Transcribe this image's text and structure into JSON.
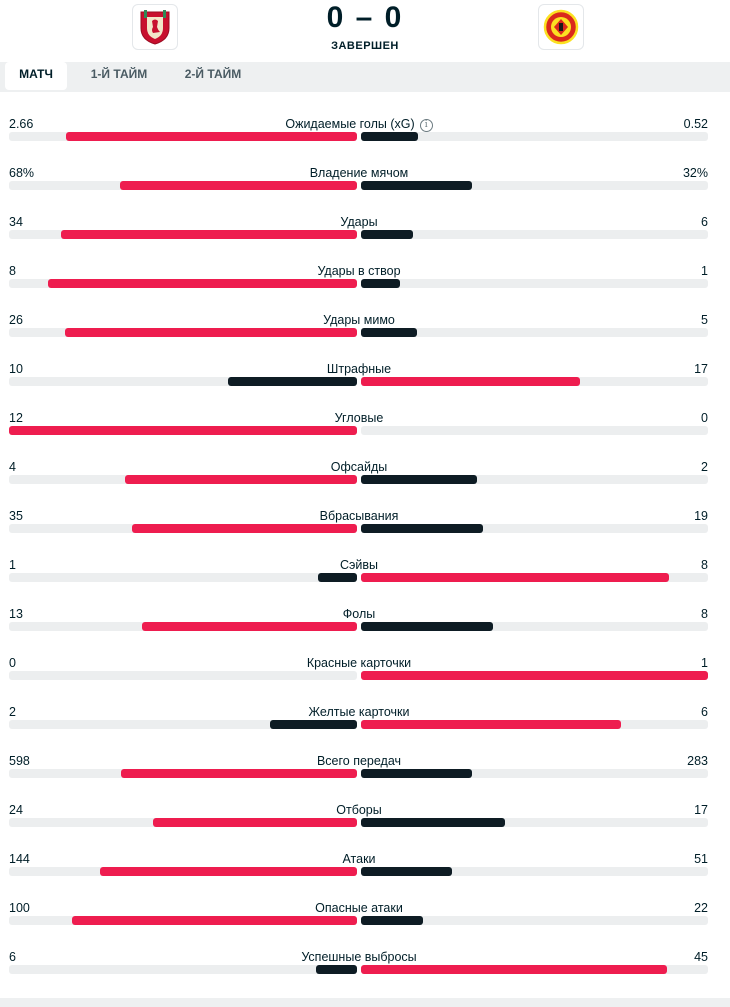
{
  "match": {
    "score": "0 – 0",
    "status": "ЗАВЕРШЕН",
    "home_logo": "liverpool-crest",
    "away_logo": "manchester-united-crest"
  },
  "tabs": [
    {
      "label": "МАТЧ",
      "active": true
    },
    {
      "label": "1-Й ТАЙМ",
      "active": false
    },
    {
      "label": "2-Й ТАЙМ",
      "active": false
    }
  ],
  "colors": {
    "win": "#ee1d4f",
    "lose": "#0e1c24",
    "track": "#eceeef"
  },
  "stats": [
    {
      "label": "Ожидаемые голы (xG)",
      "home": "2.66",
      "away": "0.52",
      "home_share": 0.836,
      "away_share": 0.164,
      "info": true
    },
    {
      "label": "Владение мячом",
      "home": "68%",
      "away": "32%",
      "home_share": 0.68,
      "away_share": 0.32
    },
    {
      "label": "Удары",
      "home": "34",
      "away": "6",
      "home_share": 0.85,
      "away_share": 0.15
    },
    {
      "label": "Удары в створ",
      "home": "8",
      "away": "1",
      "home_share": 0.889,
      "away_share": 0.111
    },
    {
      "label": "Удары мимо",
      "home": "26",
      "away": "5",
      "home_share": 0.839,
      "away_share": 0.161
    },
    {
      "label": "Штрафные",
      "home": "10",
      "away": "17",
      "home_share": 0.37,
      "away_share": 0.63
    },
    {
      "label": "Угловые",
      "home": "12",
      "away": "0",
      "home_share": 1.0,
      "away_share": 0.0
    },
    {
      "label": "Офсайды",
      "home": "4",
      "away": "2",
      "home_share": 0.667,
      "away_share": 0.333
    },
    {
      "label": "Вбрасывания",
      "home": "35",
      "away": "19",
      "home_share": 0.648,
      "away_share": 0.352
    },
    {
      "label": "Сэйвы",
      "home": "1",
      "away": "8",
      "home_share": 0.111,
      "away_share": 0.889
    },
    {
      "label": "Фолы",
      "home": "13",
      "away": "8",
      "home_share": 0.619,
      "away_share": 0.381
    },
    {
      "label": "Красные карточки",
      "home": "0",
      "away": "1",
      "home_share": 0.0,
      "away_share": 1.0
    },
    {
      "label": "Желтые карточки",
      "home": "2",
      "away": "6",
      "home_share": 0.25,
      "away_share": 0.75
    },
    {
      "label": "Всего передач",
      "home": "598",
      "away": "283",
      "home_share": 0.679,
      "away_share": 0.321
    },
    {
      "label": "Отборы",
      "home": "24",
      "away": "17",
      "home_share": 0.585,
      "away_share": 0.415
    },
    {
      "label": "Атаки",
      "home": "144",
      "away": "51",
      "home_share": 0.738,
      "away_share": 0.262
    },
    {
      "label": "Опасные атаки",
      "home": "100",
      "away": "22",
      "home_share": 0.82,
      "away_share": 0.18
    },
    {
      "label": "Успешные выбросы",
      "home": "6",
      "away": "45",
      "home_share": 0.118,
      "away_share": 0.882
    }
  ]
}
